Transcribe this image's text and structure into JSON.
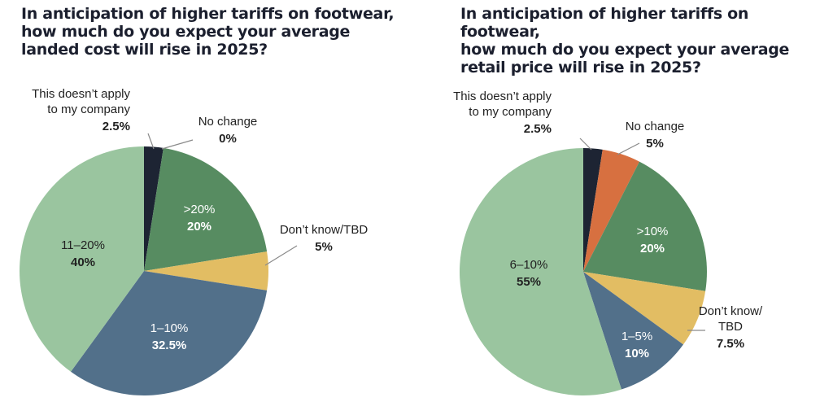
{
  "chart_data": [
    {
      "type": "pie",
      "title": "In anticipation of higher tariffs on footwear,\nhow much do you expect your average\nlanded cost will rise in 2025?",
      "slices": [
        {
          "label": "This doesn’t apply\nto my company",
          "value": 2.5,
          "value_label": "2.5%",
          "color": "#1d2433"
        },
        {
          "label": "No change",
          "value": 0,
          "value_label": "0%",
          "color": "#d77040"
        },
        {
          "label": ">20%",
          "value": 20,
          "value_label": "20%",
          "color": "#578c61"
        },
        {
          "label": "Don’t know/TBD",
          "value": 5,
          "value_label": "5%",
          "color": "#e2bd63"
        },
        {
          "label": "1–10%",
          "value": 32.5,
          "value_label": "32.5%",
          "color": "#52708a"
        },
        {
          "label": "11–20%",
          "value": 40,
          "value_label": "40%",
          "color": "#9ac59f"
        }
      ]
    },
    {
      "type": "pie",
      "title": "In anticipation of higher tariffs on footwear,\nhow much do you expect your average\nretail price will rise in 2025?",
      "slices": [
        {
          "label": "This doesn’t apply\nto my company",
          "value": 2.5,
          "value_label": "2.5%",
          "color": "#1d2433"
        },
        {
          "label": "No change",
          "value": 5,
          "value_label": "5%",
          "color": "#d77040"
        },
        {
          "label": ">10%",
          "value": 20,
          "value_label": "20%",
          "color": "#578c61"
        },
        {
          "label": "Don’t know/\nTBD",
          "value": 7.5,
          "value_label": "7.5%",
          "color": "#e2bd63"
        },
        {
          "label": "1–5%",
          "value": 10,
          "value_label": "10%",
          "color": "#52708a"
        },
        {
          "label": "6–10%",
          "value": 55,
          "value_label": "55%",
          "color": "#9ac59f"
        }
      ]
    }
  ]
}
